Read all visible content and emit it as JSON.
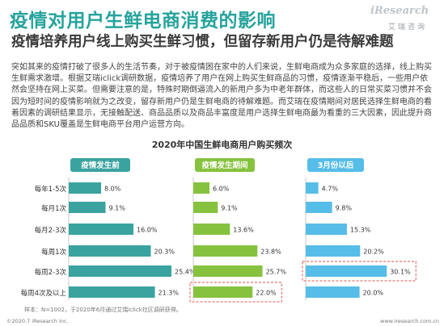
{
  "title": "疫情对用户生鲜电商消费的影响",
  "subtitle": "疫情培养用户线上购买生鲜习惯，但留存新用户仍是待解难题",
  "logo": {
    "en": "iResearch",
    "cn": "艾瑞咨询"
  },
  "paragraph": "突如其来的疫情打破了很多人的生活节奏，对于被疫情困在家中的人们来说，生鲜电商成为众多家庭的选择，线上购买生鲜需求激增。根据艾瑞iclick调研数据，疫情培养了用户在网上购买生鲜商品的习惯，疫情逐渐平稳后，一些用户依然会坚持在网上买菜。但需要注意的是，特殊时期倒逼流入的新用户多为中老年群体，而这些人的日常买菜习惯并不会因为短时间的疫情影响就为之改变，留存新用户仍是生鲜电商的待解难题。而艾瑞在疫情期间对居民选择生鲜电商的看着因素的调研结果显示，无接触配送、商品品质以及商品丰富度是用户选择生鲜电商最为看重的三大因素，因此提升商品品质和SKU覆盖是生鲜电商平台用户运营方向。",
  "note": "样本：N=1002，于2020年6月通过艾瑞iclick社区调研获得。",
  "footer": {
    "left": "©2020.7 iResearch Inc.",
    "right": "www.iresearch.com.cn"
  },
  "colors": {
    "before": "#3aa3a0",
    "during": "#86c23e",
    "after": "#56bde8",
    "highlight": "#e2504a"
  },
  "chart_data": {
    "type": "bar",
    "orientation": "horizontal",
    "title": "2020年中国生鲜电商用户购买频次",
    "categories": [
      "每年1-5次",
      "每月1次",
      "每月2-3次",
      "每周1次",
      "每周2-3次",
      "每周4次及以上"
    ],
    "series": [
      {
        "name": "疫情发生前",
        "values": [
          8.0,
          9.1,
          16.0,
          20.3,
          25.4,
          21.3
        ],
        "labels": [
          "8.0%",
          "9.1%",
          "16.0%",
          "20.3%",
          "25.4%",
          "21.3%"
        ]
      },
      {
        "name": "疫情发生期间",
        "values": [
          6.0,
          9.1,
          13.6,
          23.8,
          25.7,
          22.0
        ],
        "labels": [
          "6.0%",
          "9.1%",
          "13.6%",
          "23.8%",
          "25.7%",
          "22.0%"
        ]
      },
      {
        "name": "3月份以后",
        "values": [
          4.7,
          9.8,
          15.3,
          20.2,
          30.1,
          20.0
        ],
        "labels": [
          "4.7%",
          "9.8%",
          "15.3%",
          "20.2%",
          "30.1%",
          "20.0%"
        ]
      }
    ],
    "highlighted": [
      {
        "series": 1,
        "category": 5
      },
      {
        "series": 2,
        "category": 4
      }
    ],
    "unit": "%"
  }
}
